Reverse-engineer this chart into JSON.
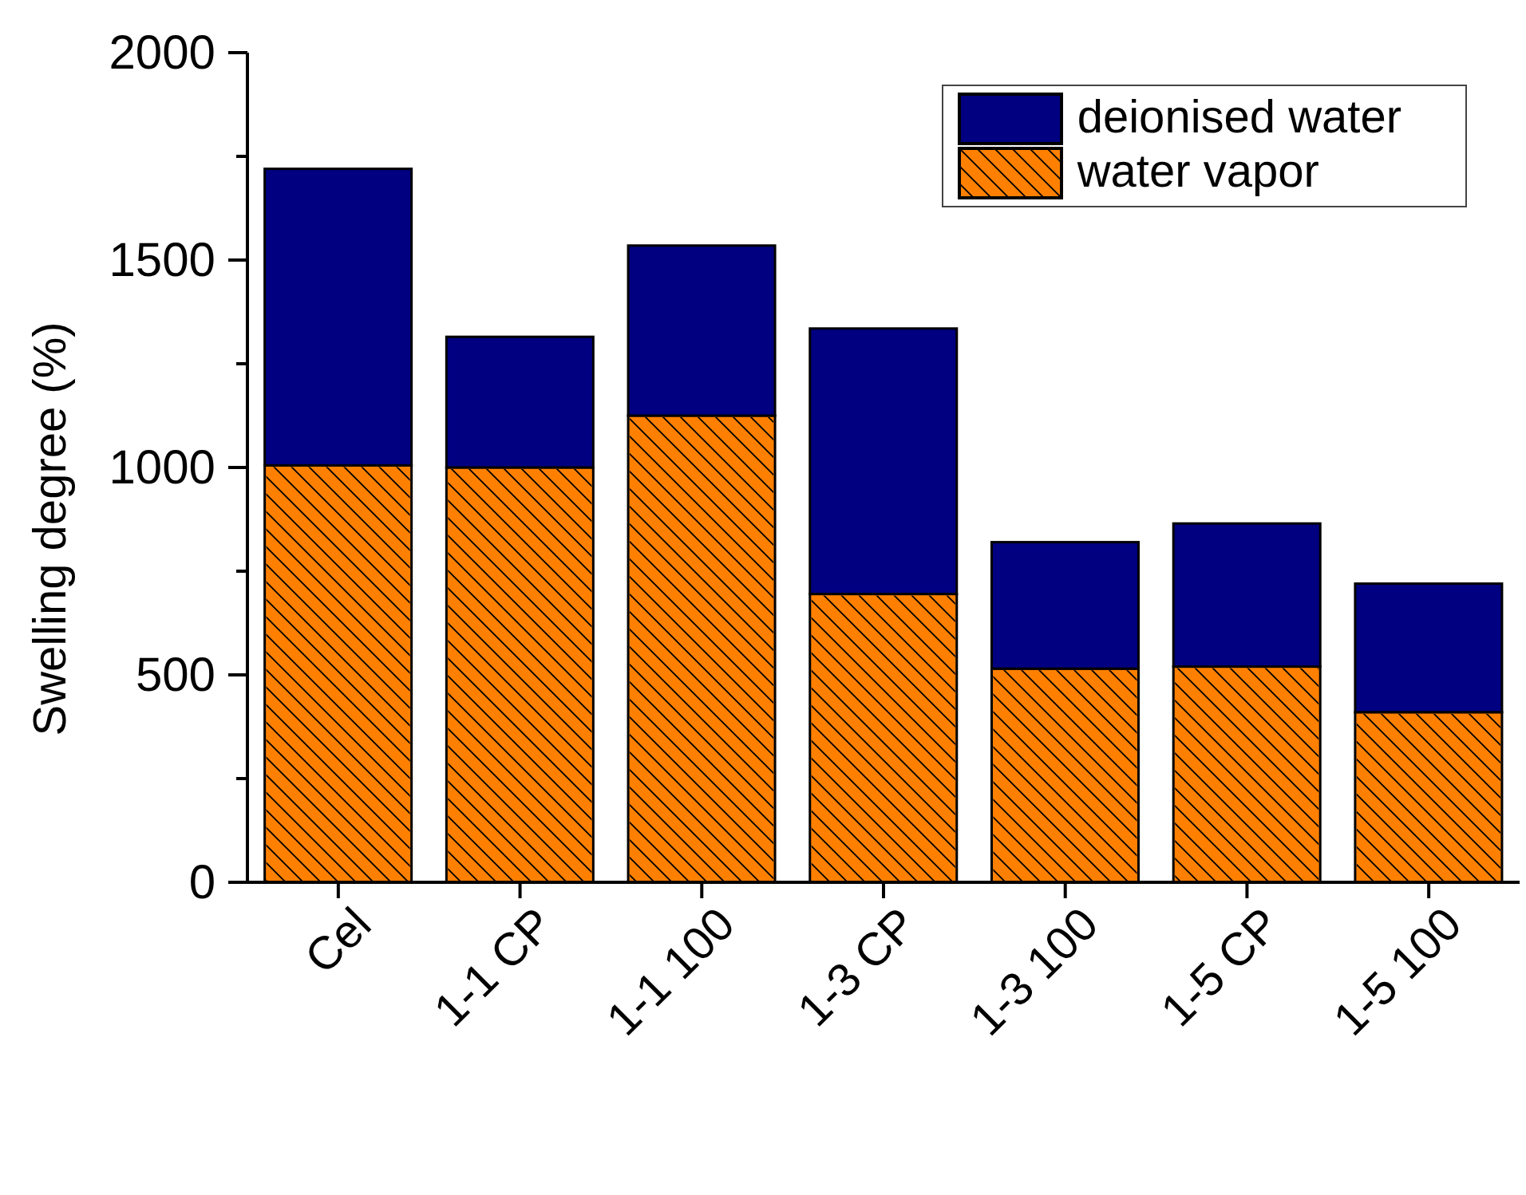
{
  "chart_data": {
    "type": "bar",
    "ylabel": "Swelling degree (%)",
    "categories": [
      "Cel",
      "1-1 CP",
      "1-1 100",
      "1-3 CP",
      "1-3 100",
      "1-5 CP",
      "1-5 100"
    ],
    "stacked": true,
    "series": [
      {
        "name": "water vapor",
        "color": "#ff8000",
        "values": [
          1005,
          1000,
          1125,
          695,
          515,
          520,
          410
        ]
      },
      {
        "name": "deionised water",
        "color": "#000080",
        "values": [
          715,
          315,
          410,
          640,
          305,
          345,
          310
        ]
      }
    ],
    "ylim": [
      0,
      2000
    ],
    "yticks": [
      0,
      {
        "value": 250,
        "label": null
      },
      500,
      {
        "value": 750,
        "label": null
      },
      1000,
      {
        "value": 1250,
        "label": null
      },
      1500,
      {
        "value": 1750,
        "label": null
      },
      2000
    ],
    "legend": "top right"
  }
}
